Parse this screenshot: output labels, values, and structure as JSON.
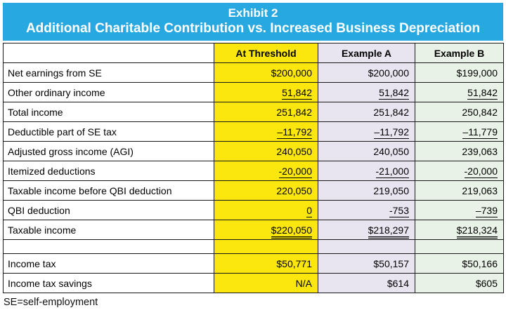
{
  "banner": {
    "line1": "Exhibit 2",
    "line2": "Additional Charitable Contribution vs. Increased Business Depreciation"
  },
  "colors": {
    "blue": "#28A8E0",
    "yellow": "#FBE70E",
    "lav": "#E8E5F0",
    "grn": "#E9F2E7"
  },
  "table": {
    "columns": [
      "",
      "At Threshold",
      "Example A",
      "Example B"
    ],
    "rows": [
      {
        "label": "Net earnings from SE",
        "values": [
          "$200,000",
          "$200,000",
          "$199,000"
        ],
        "underline": "none"
      },
      {
        "label": "Other ordinary income",
        "values": [
          "51,842",
          "51,842",
          "51,842"
        ],
        "underline": "single"
      },
      {
        "label": "Total income",
        "values": [
          "251,842",
          "251,842",
          "250,842"
        ],
        "underline": "none"
      },
      {
        "label": "Deductible part of SE tax",
        "values": [
          "–11,792",
          "–11,792",
          "–11,779"
        ],
        "underline": "single"
      },
      {
        "label": "Adjusted gross income (AGI)",
        "values": [
          "240,050",
          "240,050",
          "239,063"
        ],
        "underline": "none"
      },
      {
        "label": "Itemized deductions",
        "values": [
          "-20,000",
          "-21,000",
          "-20,000"
        ],
        "underline": "single"
      },
      {
        "label": "Taxable income before QBI deduction",
        "values": [
          "220,050",
          "219,050",
          "219,063"
        ],
        "underline": "none"
      },
      {
        "label": "QBI deduction",
        "values": [
          "0",
          "-753",
          "–739"
        ],
        "underline": "single"
      },
      {
        "label": "Taxable income",
        "values": [
          "$220,050",
          "$218,297",
          "$218,324"
        ],
        "underline": "double"
      },
      {
        "label": "",
        "values": [
          "",
          "",
          ""
        ],
        "underline": "none"
      },
      {
        "label": "Income tax",
        "values": [
          "$50,771",
          "$50,157",
          "$50,166"
        ],
        "underline": "none"
      },
      {
        "label": "Income tax savings",
        "values": [
          "N/A",
          "$614",
          "$605"
        ],
        "underline": "none"
      }
    ]
  },
  "footnote": "SE=self-employment",
  "chart_data": {
    "type": "table",
    "title": "Exhibit 2: Additional Charitable Contribution vs. Increased Business Depreciation",
    "columns": [
      "At Threshold",
      "Example A",
      "Example B"
    ],
    "rows": [
      {
        "label": "Net earnings from SE",
        "At Threshold": 200000,
        "Example A": 200000,
        "Example B": 199000
      },
      {
        "label": "Other ordinary income",
        "At Threshold": 51842,
        "Example A": 51842,
        "Example B": 51842
      },
      {
        "label": "Total income",
        "At Threshold": 251842,
        "Example A": 251842,
        "Example B": 250842
      },
      {
        "label": "Deductible part of SE tax",
        "At Threshold": -11792,
        "Example A": -11792,
        "Example B": -11779
      },
      {
        "label": "Adjusted gross income (AGI)",
        "At Threshold": 240050,
        "Example A": 240050,
        "Example B": 239063
      },
      {
        "label": "Itemized deductions",
        "At Threshold": -20000,
        "Example A": -21000,
        "Example B": -20000
      },
      {
        "label": "Taxable income before QBI deduction",
        "At Threshold": 220050,
        "Example A": 219050,
        "Example B": 219063
      },
      {
        "label": "QBI deduction",
        "At Threshold": 0,
        "Example A": -753,
        "Example B": -739
      },
      {
        "label": "Taxable income",
        "At Threshold": 220050,
        "Example A": 218297,
        "Example B": 218324
      },
      {
        "label": "Income tax",
        "At Threshold": 50771,
        "Example A": 50157,
        "Example B": 50166
      },
      {
        "label": "Income tax savings",
        "At Threshold": null,
        "Example A": 614,
        "Example B": 605
      }
    ],
    "footnote": "SE=self-employment"
  }
}
